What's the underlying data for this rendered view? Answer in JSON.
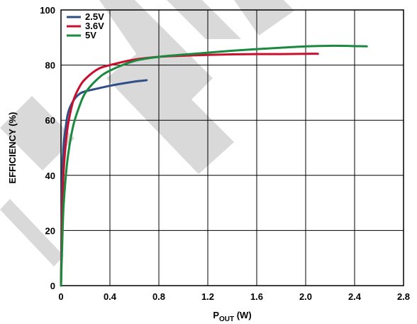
{
  "chart_data": {
    "type": "line",
    "title": "",
    "xlabel_main": "P",
    "xlabel_sub": "OUT",
    "xlabel_unit": " (W)",
    "ylabel": "EFFICIENCY (%)",
    "xlim": [
      0,
      2.8
    ],
    "ylim": [
      0,
      100
    ],
    "x_ticks": [
      "0",
      "0.4",
      "0.8",
      "1.2",
      "1.6",
      "2.0",
      "2.4",
      "2.8"
    ],
    "y_ticks": [
      "0",
      "20",
      "40",
      "60",
      "80",
      "100"
    ],
    "grid": true,
    "legend_position": "top-left",
    "series": [
      {
        "name": "2.5V",
        "color": "#2f4f86",
        "points": [
          [
            0.0,
            0
          ],
          [
            0.01,
            38
          ],
          [
            0.02,
            50
          ],
          [
            0.04,
            58
          ],
          [
            0.06,
            63
          ],
          [
            0.1,
            67
          ],
          [
            0.15,
            69.5
          ],
          [
            0.2,
            70.5
          ],
          [
            0.3,
            71.5
          ],
          [
            0.4,
            72.5
          ],
          [
            0.5,
            73.3
          ],
          [
            0.6,
            74
          ],
          [
            0.7,
            74.5
          ]
        ]
      },
      {
        "name": "3.6V",
        "color": "#c8102e",
        "points": [
          [
            0.0,
            0
          ],
          [
            0.01,
            25
          ],
          [
            0.02,
            40
          ],
          [
            0.04,
            52
          ],
          [
            0.06,
            59
          ],
          [
            0.1,
            67
          ],
          [
            0.15,
            72
          ],
          [
            0.2,
            75
          ],
          [
            0.3,
            78.5
          ],
          [
            0.4,
            80
          ],
          [
            0.6,
            82
          ],
          [
            0.8,
            83
          ],
          [
            1.0,
            83.4
          ],
          [
            1.2,
            83.7
          ],
          [
            1.4,
            83.9
          ],
          [
            1.6,
            84
          ],
          [
            1.8,
            84
          ],
          [
            2.0,
            84.1
          ],
          [
            2.1,
            84.1
          ]
        ]
      },
      {
        "name": "5V",
        "color": "#1b8a3e",
        "points": [
          [
            0.0,
            0
          ],
          [
            0.01,
            15
          ],
          [
            0.02,
            28
          ],
          [
            0.04,
            40
          ],
          [
            0.06,
            48
          ],
          [
            0.1,
            58
          ],
          [
            0.15,
            65
          ],
          [
            0.2,
            70
          ],
          [
            0.3,
            75
          ],
          [
            0.4,
            78
          ],
          [
            0.6,
            81.5
          ],
          [
            0.8,
            83
          ],
          [
            1.0,
            83.8
          ],
          [
            1.2,
            84.5
          ],
          [
            1.4,
            85.2
          ],
          [
            1.6,
            85.8
          ],
          [
            1.8,
            86.3
          ],
          [
            2.0,
            86.8
          ],
          [
            2.2,
            87
          ],
          [
            2.4,
            86.9
          ],
          [
            2.5,
            86.8
          ]
        ]
      }
    ]
  }
}
